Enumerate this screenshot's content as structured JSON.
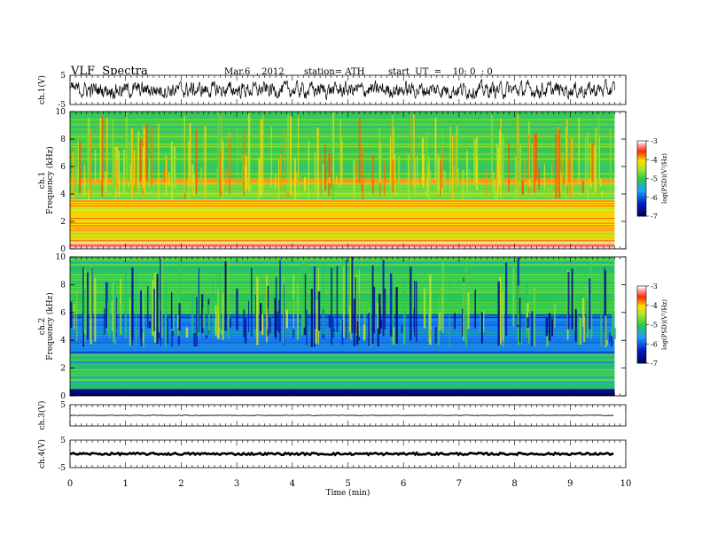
{
  "header": {
    "title": "VLF  Spectra",
    "date": "Mar.6  , 2012",
    "station": "station= ATH",
    "start": "start  UT  =    10: 0  : 0"
  },
  "colors": {
    "low": "#000080",
    "mid_low": "#1e90ff",
    "mid": "#33cc33",
    "mid_high": "#ffff00",
    "high": "#ff0000",
    "top": "#ffffff"
  },
  "chart_data": [
    {
      "type": "line",
      "ylabel": "ch.1(V)",
      "ylim": [
        -5,
        5
      ],
      "yticks": [
        "5",
        "-5"
      ],
      "description_series": "broadband waveform oscillating roughly between -2.5 and 2.5",
      "x_extent_min": [
        0,
        9.8
      ]
    },
    {
      "type": "heatmap",
      "ylabel": "ch.1\nFrequency  (kHz)",
      "ylim": [
        0,
        10
      ],
      "yticks": [
        "0",
        "2",
        "4",
        "6",
        "8",
        "10"
      ],
      "colorbar": {
        "label": "log(PSD)(V²/Hz)",
        "range": [
          -7,
          -3
        ],
        "ticks": [
          "-3",
          "-4",
          "-5",
          "-6",
          "-7"
        ]
      },
      "bands_khz": [
        {
          "from": 0,
          "to": 0.4,
          "level": -3.2
        },
        {
          "from": 0.4,
          "to": 1.2,
          "level": -4.2
        },
        {
          "from": 1.2,
          "to": 3.6,
          "level": -4.0
        },
        {
          "from": 3.6,
          "to": 4.8,
          "level": -4.6
        },
        {
          "from": 4.8,
          "to": 5.1,
          "level": -3.8
        },
        {
          "from": 5.1,
          "to": 10,
          "level": -4.9
        }
      ]
    },
    {
      "type": "heatmap",
      "ylabel": "ch.2\nFrequency  (kHz)",
      "ylim": [
        0,
        10
      ],
      "yticks": [
        "0",
        "2",
        "4",
        "6",
        "8",
        "10"
      ],
      "colorbar": {
        "label": "log(PSD)(V²/Hz)",
        "range": [
          -7,
          -3
        ],
        "ticks": [
          "-3",
          "-4",
          "-5",
          "-6",
          "-7"
        ]
      },
      "bands_khz": [
        {
          "from": 0,
          "to": 0.5,
          "level": -6.8
        },
        {
          "from": 0.5,
          "to": 3.0,
          "level": -5.1
        },
        {
          "from": 3.0,
          "to": 5.8,
          "level": -5.8
        },
        {
          "from": 5.8,
          "to": 10,
          "level": -5.0
        }
      ]
    },
    {
      "type": "line",
      "ylabel": "ch.3(V)",
      "ylim": [
        -5,
        5
      ],
      "yticks": [
        "5"
      ],
      "flat_value": 0
    },
    {
      "type": "line",
      "ylabel": "ch.4(V)",
      "ylim": [
        -5,
        5
      ],
      "yticks": [
        "5",
        "-5"
      ],
      "flat_value": 0
    }
  ],
  "xaxis": {
    "label": "Time  (min)",
    "range": [
      0,
      10
    ],
    "ticks": [
      "0",
      "1",
      "2",
      "3",
      "4",
      "5",
      "6",
      "7",
      "8",
      "9",
      "10"
    ]
  }
}
